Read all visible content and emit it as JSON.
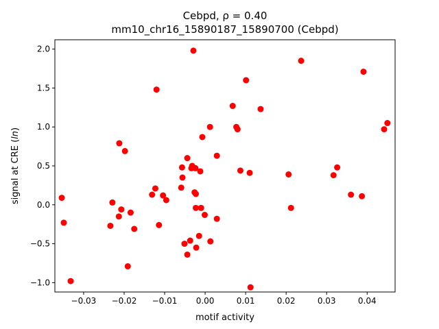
{
  "chart_data": {
    "type": "scatter",
    "title_line1_prefix": "Cebpd, ",
    "title_line1_stat": "ρ = 0.40",
    "title_line2": "mm10_chr16_15890187_15890700 (Cebpd)",
    "xlabel": "motif activity",
    "ylabel_prefix": "signal at CRE (",
    "ylabel_italic": "ln",
    "ylabel_suffix": ")",
    "xlim": [
      -0.0371,
      0.0469
    ],
    "ylim": [
      -1.12,
      2.12
    ],
    "xticks": [
      -0.03,
      -0.02,
      -0.01,
      0.0,
      0.01,
      0.02,
      0.03,
      0.04
    ],
    "xtick_labels": [
      "−0.03",
      "−0.02",
      "−0.01",
      "0.00",
      "0.01",
      "0.02",
      "0.03",
      "0.04"
    ],
    "yticks": [
      -1.0,
      -0.5,
      0.0,
      0.5,
      1.0,
      1.5,
      2.0
    ],
    "ytick_labels": [
      "−1.0",
      "−0.5",
      "0.0",
      "0.5",
      "1.0",
      "1.5",
      "2.0"
    ],
    "grid": false,
    "marker_color": "#ff0000",
    "points": [
      [
        -0.0354,
        0.09
      ],
      [
        -0.0349,
        -0.23
      ],
      [
        -0.0332,
        -0.98
      ],
      [
        -0.0229,
        0.03
      ],
      [
        -0.0234,
        -0.27
      ],
      [
        -0.0212,
        0.79
      ],
      [
        -0.0213,
        -0.15
      ],
      [
        -0.0207,
        -0.06
      ],
      [
        -0.0198,
        0.69
      ],
      [
        -0.0191,
        -0.79
      ],
      [
        -0.0184,
        -0.1
      ],
      [
        -0.0175,
        -0.31
      ],
      [
        -0.012,
        1.48
      ],
      [
        -0.0123,
        0.21
      ],
      [
        -0.0131,
        0.13
      ],
      [
        -0.0114,
        -0.26
      ],
      [
        -0.0104,
        0.12
      ],
      [
        -0.0096,
        0.06
      ],
      [
        -0.0059,
        0.22
      ],
      [
        -0.0057,
        0.48
      ],
      [
        -0.0056,
        0.35
      ],
      [
        -0.0051,
        -0.5
      ],
      [
        -0.0044,
        0.6
      ],
      [
        -0.0044,
        -0.64
      ],
      [
        -0.0037,
        -0.46
      ],
      [
        -0.0034,
        0.47
      ],
      [
        -0.0032,
        0.5
      ],
      [
        -0.0029,
        1.98
      ],
      [
        -0.0026,
        0.16
      ],
      [
        -0.0024,
        0.47
      ],
      [
        -0.0023,
        0.14
      ],
      [
        -0.0023,
        -0.04
      ],
      [
        -0.0022,
        -0.55
      ],
      [
        -0.0015,
        -0.4
      ],
      [
        -0.0012,
        0.43
      ],
      [
        -0.001,
        -0.04
      ],
      [
        -0.0007,
        0.87
      ],
      [
        -0.0001,
        -0.13
      ],
      [
        0.0012,
        1.0
      ],
      [
        0.0013,
        -0.47
      ],
      [
        0.0029,
        0.63
      ],
      [
        0.0029,
        -0.18
      ],
      [
        0.0068,
        1.27
      ],
      [
        0.0077,
        1.0
      ],
      [
        0.008,
        0.97
      ],
      [
        0.0087,
        0.44
      ],
      [
        0.0101,
        1.6
      ],
      [
        0.011,
        0.41
      ],
      [
        0.0112,
        -1.06
      ],
      [
        0.0137,
        1.23
      ],
      [
        0.0206,
        0.39
      ],
      [
        0.0212,
        -0.04
      ],
      [
        0.0237,
        1.85
      ],
      [
        0.0317,
        0.38
      ],
      [
        0.0326,
        0.48
      ],
      [
        0.036,
        0.13
      ],
      [
        0.0387,
        0.11
      ],
      [
        0.0391,
        1.71
      ],
      [
        0.0442,
        0.97
      ],
      [
        0.045,
        1.05
      ]
    ]
  }
}
